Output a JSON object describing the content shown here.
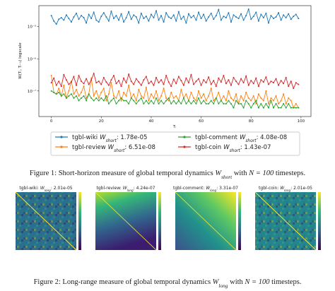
{
  "chart_data": {
    "type": "line",
    "ylabel": "W(Tᵢ, Tᵢ₋₁) logscale",
    "xlabel": "Tᵢ",
    "log_y": true,
    "marker": "dot",
    "xlim": [
      -5,
      104
    ],
    "xticks": [
      0,
      20,
      40,
      60,
      80,
      100
    ],
    "ylim": [
      1.6e-08,
      4.5e-05
    ],
    "yticks": [
      {
        "value": 1e-07,
        "label": "10⁻⁷"
      },
      {
        "value": 1e-06,
        "label": "10⁻⁶"
      },
      {
        "value": 1e-05,
        "label": "10⁻⁵"
      }
    ],
    "x": [
      0,
      1,
      2,
      3,
      4,
      5,
      6,
      7,
      8,
      9,
      10,
      11,
      12,
      13,
      14,
      15,
      16,
      17,
      18,
      19,
      20,
      21,
      22,
      23,
      24,
      25,
      26,
      27,
      28,
      29,
      30,
      31,
      32,
      33,
      34,
      35,
      36,
      37,
      38,
      39,
      40,
      41,
      42,
      43,
      44,
      45,
      46,
      47,
      48,
      49,
      50,
      51,
      52,
      53,
      54,
      55,
      56,
      57,
      58,
      59,
      60,
      61,
      62,
      63,
      64,
      65,
      66,
      67,
      68,
      69,
      70,
      71,
      72,
      73,
      74,
      75,
      76,
      77,
      78,
      79,
      80,
      81,
      82,
      83,
      84,
      85,
      86,
      87,
      88,
      89,
      90,
      91,
      92,
      93,
      94,
      95,
      96,
      97,
      98,
      99
    ],
    "series": [
      {
        "name": "tgbl-wiki",
        "symbol": "W",
        "subscript": "short",
        "suffix": ": 1.78e-05",
        "color": "#1f77b4",
        "values": [
          2.2e-05,
          1.5e-05,
          1.2e-05,
          1.7e-05,
          1.9e-05,
          1.6e-05,
          2.3e-05,
          1.8e-05,
          1.4e-05,
          2e-05,
          2.6e-05,
          1.7e-05,
          2.2e-05,
          1.9e-05,
          1.3e-05,
          2.4e-05,
          1.8e-05,
          2.8e-05,
          1.6e-05,
          1.4e-05,
          2.1e-05,
          2.7e-05,
          2e-05,
          1.5e-05,
          3e-05,
          1.8e-05,
          2.2e-05,
          1.6e-05,
          2.5e-05,
          1.4e-05,
          1.9e-05,
          2.9e-05,
          1.7e-05,
          2.3e-05,
          2e-05,
          1.3e-05,
          2.6e-05,
          1.8e-05,
          2.1e-05,
          1.5e-05,
          2.4e-05,
          1.9e-05,
          3.1e-05,
          1.6e-05,
          2.2e-05,
          1.4e-05,
          2.7e-05,
          2e-05,
          1.8e-05,
          2.3e-05,
          1.5e-05,
          2.9e-05,
          1.7e-05,
          2.1e-05,
          1.3e-05,
          2.5e-05,
          1.9e-05,
          2.2e-05,
          1.6e-05,
          2.8e-05,
          1.8e-05,
          2.4e-05,
          1.5e-05,
          2e-05,
          2.6e-05,
          1.7e-05,
          2.2e-05,
          3.4e-05,
          1.6e-05,
          2.1e-05,
          1.9e-05,
          2.7e-05,
          1.4e-05,
          2.3e-05,
          2e-05,
          1.8e-05,
          2.5e-05,
          1.6e-05,
          2.2e-05,
          3.5e-05,
          1.7e-05,
          2.1e-05,
          2.8e-05,
          1.5e-05,
          2.4e-05,
          1.9e-05,
          2.6e-05,
          1.3e-05,
          2.2e-05,
          1.8e-05,
          2e-05,
          2.7e-05,
          1.6e-05,
          2.3e-05,
          1.9e-05,
          2.5e-05,
          1.7e-05,
          2.1e-05,
          2.4e-05,
          1.8e-05
        ]
      },
      {
        "name": "tgbl-review",
        "symbol": "W",
        "subscript": "short",
        "suffix": ": 6.51e-08",
        "color": "#ff7f0e",
        "values": [
          3e-07,
          9e-08,
          8e-08,
          1.2e-07,
          7e-08,
          1.5e-07,
          6e-08,
          1e-07,
          2e-07,
          8e-08,
          1.1e-07,
          7e-08,
          9e-08,
          1.4e-07,
          6e-08,
          8e-08,
          2.5e-07,
          7e-08,
          1e-07,
          6e-08,
          9e-08,
          1.2e-07,
          5e-08,
          8e-08,
          1.8e-07,
          7e-08,
          6e-08,
          1e-07,
          5e-08,
          9e-08,
          7e-08,
          1.5e-07,
          6e-08,
          8e-08,
          5e-08,
          1.1e-07,
          7e-08,
          6e-08,
          1.3e-07,
          5e-08,
          8e-08,
          6e-08,
          1e-07,
          5e-08,
          7e-08,
          1.2e-07,
          6e-08,
          5e-08,
          9e-08,
          6e-08,
          7e-08,
          5e-08,
          1.1e-07,
          6e-08,
          8e-08,
          5e-08,
          9e-08,
          6e-08,
          5e-08,
          1e-07,
          6e-08,
          8e-08,
          5e-08,
          7e-08,
          1.2e-07,
          5e-08,
          6e-08,
          9e-08,
          5e-08,
          7e-08,
          5e-08,
          1e-07,
          6e-08,
          5e-08,
          8e-08,
          4e-08,
          7e-08,
          5e-08,
          9e-08,
          6e-08,
          5e-08,
          7e-08,
          4e-08,
          8e-08,
          6e-08,
          5e-08,
          1e-07,
          4e-08,
          6e-08,
          5e-08,
          7e-08,
          4e-08,
          5e-08,
          8e-08,
          4e-08,
          6e-08,
          5e-08,
          3e-08,
          4e-08,
          3e-08
        ]
      },
      {
        "name": "tgbl-comment",
        "symbol": "W",
        "subscript": "short",
        "suffix": ": 4.08e-08",
        "color": "#2ca02c",
        "values": [
          1e-07,
          9e-08,
          8e-08,
          9e-08,
          7e-08,
          8e-08,
          6e-08,
          7e-08,
          8e-08,
          6e-08,
          7e-08,
          5e-08,
          6e-08,
          7e-08,
          5e-08,
          8e-08,
          6e-08,
          5e-08,
          6e-08,
          5e-08,
          6e-08,
          5e-08,
          7e-08,
          4e-08,
          5e-08,
          6e-08,
          4e-08,
          5e-08,
          6e-08,
          5e-08,
          5e-08,
          4e-08,
          6e-08,
          5e-08,
          4e-08,
          5e-08,
          6e-08,
          4e-08,
          5e-08,
          4e-08,
          5e-08,
          4e-08,
          6e-08,
          4e-08,
          5e-08,
          4e-08,
          5e-08,
          6e-08,
          4e-08,
          5e-08,
          4e-08,
          5e-08,
          4e-08,
          6e-08,
          4e-08,
          5e-08,
          4e-08,
          5e-08,
          4e-08,
          6e-08,
          4e-08,
          5e-08,
          4e-08,
          4e-08,
          5e-08,
          4e-08,
          6e-08,
          4e-08,
          5e-08,
          4e-08,
          4e-08,
          5e-08,
          4e-08,
          3e-08,
          5e-08,
          4e-08,
          4e-08,
          3e-08,
          5e-08,
          4e-08,
          3e-08,
          4e-08,
          5e-08,
          3e-08,
          4e-08,
          3e-08,
          4e-08,
          3e-08,
          5e-08,
          3e-08,
          4e-08,
          3e-08,
          3e-08,
          4e-08,
          3e-08,
          4e-08,
          3e-08,
          3e-08,
          3e-08,
          3e-08
        ]
      },
      {
        "name": "tgbl-coin",
        "symbol": "W",
        "subscript": "short",
        "suffix": ": 1.43e-07",
        "color": "#d62728",
        "values": [
          1.8e-07,
          2.5e-07,
          1.5e-07,
          2e-07,
          1.4e-07,
          3.2e-07,
          2.2e-07,
          1.6e-07,
          1.9e-07,
          2.8e-07,
          1.5e-07,
          3e-07,
          2e-07,
          1.7e-07,
          2.4e-07,
          1.6e-07,
          2.2e-07,
          3.5e-07,
          1.8e-07,
          2e-07,
          1.6e-07,
          2.6e-07,
          1.9e-07,
          1.5e-07,
          2.2e-07,
          3e-07,
          1.7e-07,
          2.1e-07,
          1.4e-07,
          2.5e-07,
          1.8e-07,
          3.3e-07,
          2e-07,
          1.6e-07,
          2.4e-07,
          1.9e-07,
          1.5e-07,
          2.2e-07,
          2.8e-07,
          1.7e-07,
          2e-07,
          1.5e-07,
          2.6e-07,
          1.8e-07,
          2.2e-07,
          1.6e-07,
          3e-07,
          1.9e-07,
          1.4e-07,
          2.3e-07,
          1.7e-07,
          2.8e-07,
          2.1e-07,
          1.5e-07,
          2.5e-07,
          1.8e-07,
          3.2e-07,
          1.6e-07,
          2e-07,
          2.4e-07,
          1.5e-07,
          2.2e-07,
          1.8e-07,
          2.7e-07,
          1.6e-07,
          2.1e-07,
          1.4e-07,
          2.5e-07,
          1.9e-07,
          3e-07,
          1.7e-07,
          2.2e-07,
          1.5e-07,
          2.6e-07,
          2e-07,
          1.6e-07,
          2.4e-07,
          1.8e-07,
          2.9e-07,
          1.5e-07,
          2.1e-07,
          1.7e-07,
          2.5e-07,
          1.4e-07,
          2.2e-07,
          1.9e-07,
          2.7e-07,
          1.6e-07,
          2e-07,
          1.8e-07,
          2.4e-07,
          1.5e-07,
          2.1e-07,
          1.7e-07,
          2.6e-07,
          1.4e-07,
          2e-07,
          1.2e-07,
          1.8e-07,
          1.6e-07
        ]
      }
    ]
  },
  "caption1": {
    "prefix": "Figure 1: Short-horizon measure of global temporal dynamics ",
    "symbol": "W",
    "subscript": "short",
    "middle": " with ",
    "n": "N = 100",
    "suffix": " timesteps."
  },
  "heatmaps": [
    {
      "dataset": "tgbl-wiki: ",
      "symbol": "W",
      "subscript": "long",
      "suffix": ": 2.01e-05"
    },
    {
      "dataset": "tgbl-review: ",
      "symbol": "W",
      "subscript": "long",
      "suffix": ": 4.24e-07"
    },
    {
      "dataset": "tgbl-comment: ",
      "symbol": "W",
      "subscript": "long",
      "suffix": ": 3.31e-07"
    },
    {
      "dataset": "tgbl-coin: ",
      "symbol": "W",
      "subscript": "long",
      "suffix": ": 2.01e-05"
    }
  ],
  "caption2": {
    "prefix": "Figure 2: Long-range measure of global temporal dynamics ",
    "symbol": "W",
    "subscript": "long",
    "middle": " with ",
    "n": "N = 100",
    "suffix": " timesteps."
  }
}
